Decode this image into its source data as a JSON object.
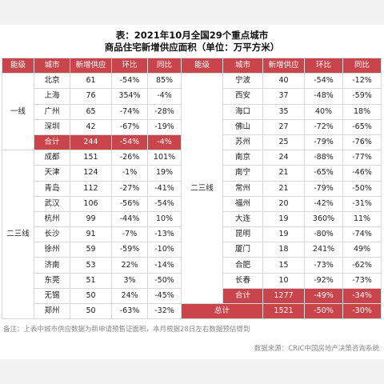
{
  "title_line1": "表：2021年10月全国29个重点城市",
  "title_line2": "商品住宅新增供应面积（单位：万平方米）",
  "headers": [
    "能级",
    "城市",
    "新增供应",
    "环比",
    "同比"
  ],
  "left": {
    "groups": [
      {
        "tier": "一线",
        "rows": [
          [
            "北京",
            "61",
            "-54%",
            "85%"
          ],
          [
            "上海",
            "76",
            "354%",
            "-4%"
          ],
          [
            "广州",
            "65",
            "-74%",
            "-28%"
          ],
          [
            "深圳",
            "42",
            "-67%",
            "-19%"
          ]
        ],
        "total": [
          "合计",
          "244",
          "-54%",
          "-4%"
        ]
      },
      {
        "tier": "二三线",
        "rows": [
          [
            "成都",
            "151",
            "-26%",
            "101%"
          ],
          [
            "天津",
            "124",
            "-1%",
            "19%"
          ],
          [
            "青岛",
            "112",
            "-27%",
            "-41%"
          ],
          [
            "武汉",
            "106",
            "-56%",
            "-54%"
          ],
          [
            "杭州",
            "99",
            "-44%",
            "10%"
          ],
          [
            "长沙",
            "91",
            "-7%",
            "-13%"
          ],
          [
            "徐州",
            "59",
            "-59%",
            "-10%"
          ],
          [
            "济南",
            "53",
            "22%",
            "-14%"
          ],
          [
            "东莞",
            "51",
            "3%",
            "-50%"
          ],
          [
            "无锡",
            "50",
            "24%",
            "-45%"
          ],
          [
            "郑州",
            "50",
            "-63%",
            "-32%"
          ]
        ]
      }
    ]
  },
  "right": {
    "tier": "二三线",
    "rows": [
      [
        "宁波",
        "40",
        "-54%",
        "-12%"
      ],
      [
        "西安",
        "37",
        "-48%",
        "-59%"
      ],
      [
        "海口",
        "35",
        "40%",
        "18%"
      ],
      [
        "佛山",
        "27",
        "-72%",
        "-65%"
      ],
      [
        "苏州",
        "25",
        "-79%",
        "-76%"
      ],
      [
        "南京",
        "24",
        "-88%",
        "-77%"
      ],
      [
        "南宁",
        "21",
        "-65%",
        "-46%"
      ],
      [
        "常州",
        "21",
        "-79%",
        "-50%"
      ],
      [
        "福州",
        "20",
        "-42%",
        "-31%"
      ],
      [
        "大连",
        "19",
        "360%",
        "11%"
      ],
      [
        "昆明",
        "19",
        "-80%",
        "-74%"
      ],
      [
        "厦门",
        "18",
        "241%",
        "49%"
      ],
      [
        "合肥",
        "15",
        "-73%",
        "-62%"
      ],
      [
        "长春",
        "10",
        "-92%",
        "-73%"
      ]
    ],
    "subtotal": [
      "合计",
      "1277",
      "-49%",
      "-34%"
    ],
    "grand_total": [
      "总计",
      "1521",
      "-50%",
      "-30%"
    ]
  },
  "note": "备注：上表中城市供应数据为新申请预售证面积，本月根据28日左右数据预估得到",
  "source": "数据来源：CRIC中国房地产决策咨询系统",
  "colors": {
    "header_bg": "#c9444b",
    "total_bg": "#c9444b",
    "border": "#d7d7d7"
  }
}
